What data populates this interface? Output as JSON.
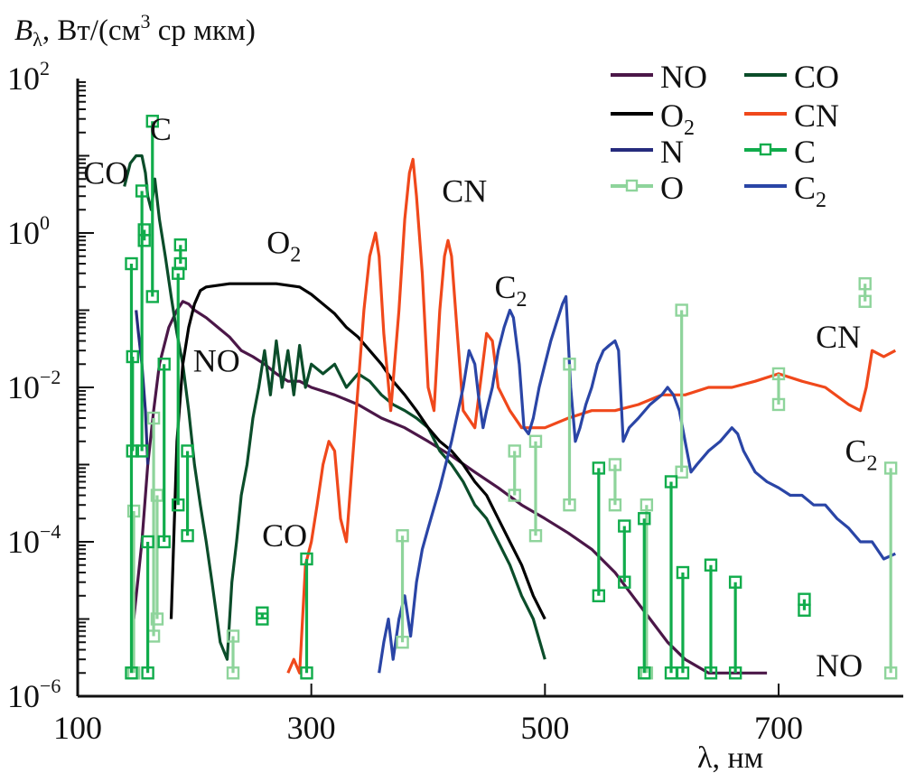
{
  "chart_data": {
    "type": "line",
    "title": "",
    "ylabel": "Bλ, Вт/(см3 ср мкм)",
    "ylabel_parts": {
      "sym": "B",
      "sub": "λ",
      "unit_a": ", Вт/(см",
      "sup": "3",
      "unit_b": " ср мкм)"
    },
    "xlabel": "λ, нм",
    "xscale": "linear",
    "yscale": "log",
    "xlim": [
      100,
      800
    ],
    "ylim": [
      1e-06,
      100
    ],
    "x_ticks": [
      100,
      300,
      500,
      700
    ],
    "x_tick_labels": [
      "100",
      "300",
      "500",
      "700"
    ],
    "y_ticks": [
      100,
      1,
      0.01,
      0.0001,
      1e-06
    ],
    "y_tick_labels": [
      {
        "base": "10",
        "exp": "2"
      },
      {
        "base": "10",
        "exp": "0"
      },
      {
        "base": "10",
        "exp": "−2"
      },
      {
        "base": "10",
        "exp": "−4"
      },
      {
        "base": "10",
        "exp": "−6"
      }
    ],
    "grid": false,
    "legend_position": "top-right",
    "series": [
      {
        "name": "NO",
        "label_base": "NO",
        "label_sub": "",
        "color": "#4b1748",
        "marker": "none",
        "x": [
          148,
          155,
          160,
          165,
          170,
          178,
          185,
          190,
          195,
          200,
          210,
          220,
          230,
          240,
          250,
          260,
          270,
          280,
          290,
          300,
          320,
          340,
          360,
          380,
          400,
          420,
          440,
          460,
          480,
          500,
          520,
          540,
          560,
          575,
          590,
          605,
          620,
          640,
          660,
          680,
          690
        ],
        "y": [
          1e-05,
          0.0001,
          0.001,
          0.005,
          0.02,
          0.06,
          0.1,
          0.13,
          0.12,
          0.1,
          0.08,
          0.06,
          0.045,
          0.03,
          0.025,
          0.02,
          0.015,
          0.012,
          0.012,
          0.01,
          0.008,
          0.006,
          0.004,
          0.003,
          0.002,
          0.0013,
          0.0008,
          0.0005,
          0.0003,
          0.0002,
          0.00013,
          8e-05,
          4e-05,
          2e-05,
          1e-05,
          5e-06,
          3e-06,
          2e-06,
          2e-06,
          2e-06,
          2e-06
        ]
      },
      {
        "name": "O2",
        "label_base": "O",
        "label_sub": "2",
        "color": "#000000",
        "marker": "none",
        "x": [
          180,
          185,
          190,
          195,
          200,
          205,
          210,
          230,
          250,
          270,
          290,
          300,
          310,
          320,
          330,
          340,
          350,
          360,
          370,
          380,
          390,
          400,
          410,
          420,
          430,
          440,
          450,
          460,
          470,
          480,
          490,
          500
        ],
        "y": [
          1e-05,
          0.002,
          0.02,
          0.06,
          0.12,
          0.18,
          0.2,
          0.22,
          0.22,
          0.22,
          0.2,
          0.16,
          0.12,
          0.09,
          0.06,
          0.045,
          0.03,
          0.02,
          0.012,
          0.008,
          0.005,
          0.003,
          0.002,
          0.0015,
          0.001,
          0.0006,
          0.0004,
          0.0002,
          0.0001,
          5e-05,
          2e-05,
          1e-05
        ]
      },
      {
        "name": "N",
        "label_base": "N",
        "label_sub": "",
        "color": "#262b7d",
        "marker": "none",
        "x": [
          150,
          152,
          155,
          158,
          160
        ],
        "y": [
          0.1,
          0.05,
          0.02,
          0.005,
          0.001
        ]
      },
      {
        "name": "O",
        "label_base": "O",
        "label_sub": "",
        "color": "#8ed49b",
        "marker": "square",
        "lines": [
          {
            "x": 148,
            "y_low": 2e-06,
            "y_high": 0.00025
          },
          {
            "x": 165,
            "y_low": 6e-06,
            "y_high": 0.004
          },
          {
            "x": 168,
            "y_low": 1e-05,
            "y_high": 0.0004
          },
          {
            "x": 233,
            "y_low": 2e-06,
            "y_high": 6e-06
          },
          {
            "x": 378,
            "y_low": 5e-06,
            "y_high": 0.00012
          },
          {
            "x": 474,
            "y_low": 0.0004,
            "y_high": 0.0015
          },
          {
            "x": 492,
            "y_low": 0.00012,
            "y_high": 0.002
          },
          {
            "x": 521,
            "y_low": 0.0003,
            "y_high": 0.02
          },
          {
            "x": 560,
            "y_low": 0.0003,
            "y_high": 0.001
          },
          {
            "x": 587,
            "y_low": 2e-06,
            "y_high": 0.0003
          },
          {
            "x": 617,
            "y_low": 0.0008,
            "y_high": 0.1
          },
          {
            "x": 700,
            "y_low": 0.006,
            "y_high": 0.015
          },
          {
            "x": 774,
            "y_low": 0.13,
            "y_high": 0.22
          },
          {
            "x": 796,
            "y_low": 2e-06,
            "y_high": 0.0009
          }
        ]
      },
      {
        "name": "CO",
        "label_base": "CO",
        "label_sub": "",
        "color": "#0b4d2a",
        "marker": "none",
        "x": [
          140,
          145,
          150,
          155,
          158,
          160,
          163,
          166,
          170,
          175,
          180,
          185,
          190,
          195,
          200,
          205,
          210,
          215,
          222,
          228,
          232,
          236,
          240,
          245,
          250,
          255,
          260,
          265,
          270,
          275,
          280,
          285,
          290,
          295,
          300,
          310,
          320,
          330,
          340,
          350,
          360,
          370,
          380,
          390,
          400,
          410,
          420,
          430,
          440,
          450,
          460,
          470,
          480,
          490,
          500
        ],
        "y": [
          4,
          8,
          10,
          10,
          6,
          3,
          2,
          5,
          1.5,
          0.5,
          0.15,
          0.05,
          0.02,
          0.005,
          0.001,
          0.0003,
          0.0001,
          3e-05,
          5e-06,
          3e-06,
          3e-05,
          0.0001,
          0.0004,
          0.001,
          0.004,
          0.01,
          0.03,
          0.008,
          0.04,
          0.01,
          0.03,
          0.008,
          0.035,
          0.01,
          0.02,
          0.015,
          0.02,
          0.01,
          0.015,
          0.012,
          0.008,
          0.006,
          0.005,
          0.004,
          0.003,
          0.0015,
          0.001,
          0.0006,
          0.0003,
          0.0002,
          0.0001,
          5e-05,
          2e-05,
          1e-05,
          3e-06
        ]
      },
      {
        "name": "CN",
        "label_base": "CN",
        "label_sub": "",
        "color": "#f0481b",
        "marker": "none",
        "x": [
          280,
          285,
          290,
          295,
          300,
          305,
          310,
          315,
          320,
          325,
          330,
          335,
          340,
          345,
          350,
          355,
          358,
          362,
          368,
          375,
          380,
          384,
          387,
          390,
          395,
          400,
          405,
          410,
          414,
          417,
          420,
          425,
          430,
          440,
          450,
          455,
          460,
          470,
          480,
          500,
          520,
          540,
          560,
          580,
          600,
          620,
          640,
          660,
          680,
          700,
          720,
          740,
          760,
          770,
          775,
          780,
          790,
          800
        ],
        "y": [
          2e-06,
          3e-06,
          2e-06,
          5e-05,
          0.0001,
          0.0003,
          0.001,
          0.002,
          0.0015,
          0.0002,
          0.0001,
          0.001,
          0.01,
          0.1,
          0.5,
          1.0,
          0.5,
          0.05,
          0.005,
          0.1,
          1.5,
          6,
          9,
          3,
          0.3,
          0.01,
          0.005,
          0.1,
          0.5,
          0.8,
          0.5,
          0.05,
          0.005,
          0.003,
          0.05,
          0.04,
          0.01,
          0.005,
          0.003,
          0.003,
          0.004,
          0.005,
          0.005,
          0.006,
          0.008,
          0.008,
          0.01,
          0.01,
          0.012,
          0.015,
          0.012,
          0.01,
          0.006,
          0.005,
          0.01,
          0.03,
          0.025,
          0.03
        ]
      },
      {
        "name": "C",
        "label_base": "C",
        "label_sub": "",
        "color": "#10ac4b",
        "marker": "square",
        "lines": [
          {
            "x": 146,
            "y_low": 2e-06,
            "y_high": 0.4
          },
          {
            "x": 147,
            "y_low": 0.0015,
            "y_high": 0.025
          },
          {
            "x": 155,
            "y_low": 0.0015,
            "y_high": 3.5
          },
          {
            "x": 157,
            "y_low": 0.8,
            "y_high": 1.1
          },
          {
            "x": 160,
            "y_low": 2e-06,
            "y_high": 0.0001
          },
          {
            "x": 164,
            "y_low": 0.15,
            "y_high": 28
          },
          {
            "x": 174,
            "y_low": 0.0001,
            "y_high": 0.02
          },
          {
            "x": 186,
            "y_low": 0.0003,
            "y_high": 0.3
          },
          {
            "x": 188,
            "y_low": 0.4,
            "y_high": 0.7
          },
          {
            "x": 194,
            "y_low": 0.00012,
            "y_high": 0.0015
          },
          {
            "x": 258,
            "y_low": 1e-05,
            "y_high": 1.2e-05
          },
          {
            "x": 296,
            "y_low": 2e-06,
            "y_high": 6e-05
          },
          {
            "x": 546,
            "y_low": 2e-05,
            "y_high": 0.0009
          },
          {
            "x": 568,
            "y_low": 3e-05,
            "y_high": 0.00016
          },
          {
            "x": 585,
            "y_low": 2e-06,
            "y_high": 0.0002
          },
          {
            "x": 608,
            "y_low": 2e-06,
            "y_high": 0.0006
          },
          {
            "x": 618,
            "y_low": 2e-06,
            "y_high": 4e-05
          },
          {
            "x": 642,
            "y_low": 2e-06,
            "y_high": 5e-05
          },
          {
            "x": 663,
            "y_low": 2e-06,
            "y_high": 3e-05
          },
          {
            "x": 722,
            "y_low": 1.3e-05,
            "y_high": 1.8e-05
          }
        ]
      },
      {
        "name": "C2",
        "label_base": "C",
        "label_sub": "2",
        "color": "#2a45a6",
        "marker": "none",
        "x": [
          358,
          362,
          366,
          370,
          375,
          380,
          385,
          390,
          395,
          400,
          410,
          420,
          430,
          435,
          440,
          443,
          447,
          450,
          455,
          460,
          465,
          470,
          473,
          478,
          482,
          486,
          490,
          495,
          500,
          505,
          510,
          515,
          518,
          522,
          526,
          530,
          535,
          540,
          545,
          550,
          555,
          560,
          563,
          567,
          572,
          580,
          590,
          600,
          605,
          610,
          615,
          620,
          625,
          630,
          640,
          650,
          660,
          665,
          670,
          680,
          690,
          700,
          710,
          720,
          730,
          740,
          750,
          760,
          770,
          780,
          790,
          800
        ],
        "y": [
          2e-06,
          5e-06,
          1e-05,
          3e-06,
          1e-05,
          2e-05,
          6e-06,
          3e-05,
          8e-05,
          0.00015,
          0.0005,
          0.002,
          0.01,
          0.03,
          0.02,
          0.008,
          0.003,
          0.005,
          0.01,
          0.03,
          0.06,
          0.1,
          0.08,
          0.02,
          0.003,
          0.0025,
          0.004,
          0.01,
          0.02,
          0.04,
          0.07,
          0.12,
          0.15,
          0.01,
          0.002,
          0.003,
          0.006,
          0.01,
          0.02,
          0.03,
          0.035,
          0.04,
          0.03,
          0.002,
          0.003,
          0.004,
          0.006,
          0.008,
          0.01,
          0.008,
          0.005,
          0.002,
          0.0008,
          0.001,
          0.0015,
          0.002,
          0.003,
          0.0025,
          0.0015,
          0.0008,
          0.0006,
          0.0005,
          0.0004,
          0.0004,
          0.0003,
          0.0003,
          0.0002,
          0.00015,
          0.0001,
          0.0001,
          6e-05,
          7e-05
        ]
      }
    ],
    "annotations": [
      {
        "text_base": "CO",
        "text_sub": "",
        "x": 128,
        "y": 6,
        "series": "CO"
      },
      {
        "text_base": "C",
        "text_sub": "",
        "x": 185,
        "y": 22,
        "series": "C"
      },
      {
        "text_base": "O",
        "text_sub": "2",
        "x": 285,
        "y": 0.75,
        "series": "O2"
      },
      {
        "text_base": "NO",
        "text_sub": "",
        "x": 222,
        "y": 0.022,
        "series": "NO"
      },
      {
        "text_base": "CO",
        "text_sub": "",
        "x": 281,
        "y": 0.00012,
        "series": "CO"
      },
      {
        "text_base": "CN",
        "text_sub": "",
        "x": 435,
        "y": 3.5,
        "series": "CN"
      },
      {
        "text_base": "C",
        "text_sub": "2",
        "x": 480,
        "y": 0.2,
        "series": "C2"
      },
      {
        "text_base": "CN",
        "text_sub": "",
        "x": 755,
        "y": 0.045,
        "series": "CN"
      },
      {
        "text_base": "C",
        "text_sub": "2",
        "x": 780,
        "y": 0.0015,
        "series": "C2"
      },
      {
        "text_base": "NO",
        "text_sub": "",
        "x": 755,
        "y": 2.5e-06,
        "series": "NO"
      }
    ]
  }
}
